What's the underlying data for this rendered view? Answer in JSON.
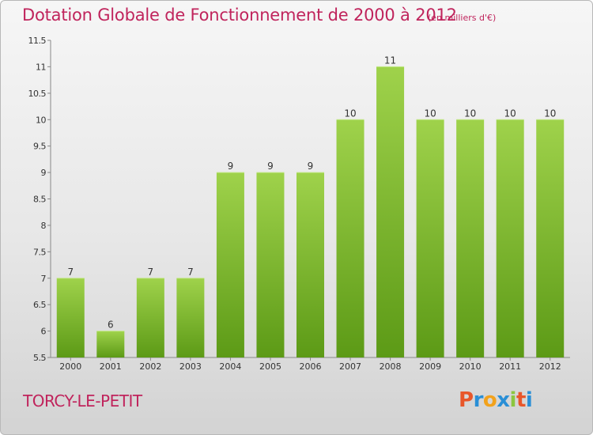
{
  "header": {
    "title": "Dotation Globale de Fonctionnement de 2000 à 2012",
    "unit": "(en milliers d'€)"
  },
  "footer": {
    "place": "TORCY-LE-PETIT",
    "logo": "Proxiti"
  },
  "colors": {
    "title": "#c0245c",
    "bar_top": "#9fd24b",
    "bar_bottom": "#5c9a16",
    "logo_letters": [
      "#e8562a",
      "#2a8fd6",
      "#f2a21c",
      "#2a8fd6",
      "#8cc63f",
      "#e8562a",
      "#2a8fd6"
    ]
  },
  "chart_data": {
    "type": "bar",
    "categories": [
      "2000",
      "2001",
      "2002",
      "2003",
      "2004",
      "2005",
      "2006",
      "2007",
      "2008",
      "2009",
      "2010",
      "2011",
      "2012"
    ],
    "values": [
      7,
      6,
      7,
      7,
      9,
      9,
      9,
      10,
      11,
      10,
      10,
      10,
      10
    ],
    "ylim": [
      5.5,
      11.5
    ],
    "yticks": [
      "5.5",
      "6",
      "6.5",
      "7",
      "7.5",
      "8",
      "8.5",
      "9",
      "9.5",
      "10",
      "10.5",
      "11",
      "11.5"
    ],
    "grid": false,
    "data_labels": true
  }
}
